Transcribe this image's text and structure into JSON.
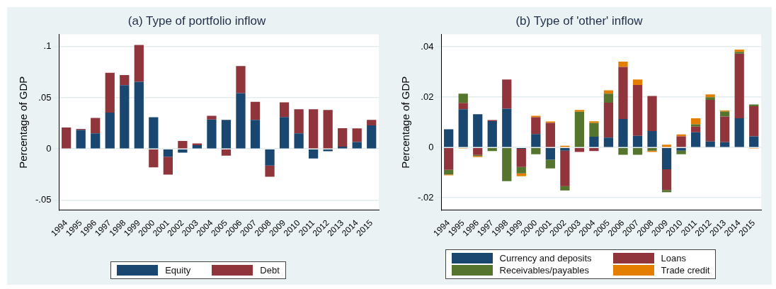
{
  "chart_data": [
    {
      "type": "bar",
      "title": "(a) Type of portfolio inflow",
      "ylabel": "Percentage of GDP",
      "stacked": true,
      "grid": "y",
      "legend": "bottom",
      "categories": [
        "1994",
        "1995",
        "1996",
        "1997",
        "1998",
        "1999",
        "2000",
        "2001",
        "2002",
        "2003",
        "2004",
        "2005",
        "2006",
        "2007",
        "2008",
        "2009",
        "2010",
        "2011",
        "2012",
        "2013",
        "2014",
        "2015"
      ],
      "ylim": [
        -0.06,
        0.112
      ],
      "yticks": [
        {
          "value": -0.05,
          "label": "-.05"
        },
        0,
        {
          "value": 0.05,
          "label": ".05"
        },
        {
          "value": 0.1,
          "label": ".1"
        }
      ],
      "series": [
        {
          "name": "Equity",
          "color": "#1a476f",
          "values": [
            0,
            0.0185,
            0.0153,
            0.0354,
            0.0622,
            0.0656,
            0.031,
            -0.0077,
            -0.0036,
            0.0036,
            0.0288,
            0.0283,
            0.0545,
            0.0283,
            -0.0162,
            0.0312,
            0.0153,
            -0.0094,
            -0.0022,
            0.0022,
            0.0068,
            0.023
          ]
        },
        {
          "name": "Debt",
          "color": "#90353b",
          "values": [
            0.021,
            0.001,
            0.015,
            0.039,
            0.01,
            0.036,
            -0.018,
            -0.0174,
            0.0077,
            0.0017,
            0.0036,
            -0.0065,
            0.0264,
            0.0177,
            -0.0109,
            0.0143,
            0.0234,
            0.0387,
            0.038,
            0.018,
            0.0133,
            0.0053
          ]
        }
      ]
    },
    {
      "type": "bar",
      "title": "(b) Type of 'other' inflow",
      "ylabel": "Percentage of GDP",
      "stacked": true,
      "grid": "y",
      "legend": "bottom",
      "categories": [
        "1994",
        "1995",
        "1996",
        "1997",
        "1998",
        "1999",
        "2000",
        "2001",
        "2002",
        "2003",
        "2004",
        "2005",
        "2006",
        "2007",
        "2008",
        "2009",
        "2010",
        "2011",
        "2012",
        "2013",
        "2014",
        "2015"
      ],
      "ylim": [
        -0.025,
        0.045
      ],
      "yticks": [
        {
          "value": -0.02,
          "label": "-.02"
        },
        0,
        {
          "value": 0.02,
          "label": ".02"
        },
        {
          "value": 0.04,
          "label": ".04"
        }
      ],
      "series": [
        {
          "name": "Currency and deposits",
          "color": "#1a476f",
          "values": [
            0.0072,
            0.0152,
            0.0132,
            0.0105,
            0.0154,
            -0.0005,
            0.0053,
            -0.0049,
            -0.0013,
            0,
            0.0043,
            0.0039,
            0.0113,
            0.0046,
            0.0065,
            -0.0087,
            -0.0013,
            0.006,
            0.0024,
            0.0021,
            0.0116,
            0.0044
          ]
        },
        {
          "name": "Loans",
          "color": "#90353b",
          "values": [
            -0.0089,
            0.0025,
            -0.003,
            0.0004,
            0.0116,
            -0.0073,
            0.0067,
            0.0098,
            -0.0141,
            -0.0018,
            -0.0014,
            0.0139,
            0.0207,
            0.0202,
            0.014,
            -0.0082,
            0.0044,
            0.0023,
            0.0165,
            0.0102,
            0.0257,
            0.012
          ]
        },
        {
          "name": "Receivables/payables",
          "color": "#55752f",
          "values": [
            -0.0018,
            0.0037,
            -0.0004,
            -0.0014,
            -0.0134,
            -0.0025,
            -0.0027,
            -0.0034,
            -0.0017,
            0.0142,
            0.0054,
            0.0036,
            -0.0029,
            -0.0029,
            -0.0013,
            -0.0009,
            -0.0014,
            0.0009,
            0.0011,
            0.002,
            0.0007,
            0.0007
          ]
        },
        {
          "name": "Trade credit",
          "color": "#e37e00",
          "values": [
            -0.0004,
            -0.0004,
            -0.0004,
            0,
            0,
            -0.0011,
            0.0006,
            0.0005,
            0.0007,
            0.0007,
            0.0007,
            0.0013,
            0.0021,
            0.0022,
            -0.0005,
            0.0011,
            0.0008,
            0.0024,
            0.0011,
            0.0004,
            0.0009,
            -0.0004
          ]
        }
      ]
    }
  ]
}
